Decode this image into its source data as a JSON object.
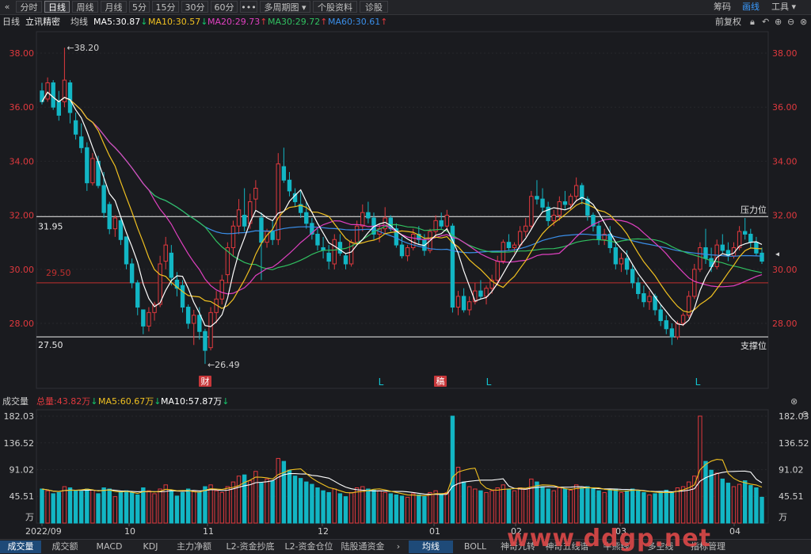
{
  "toolbar": {
    "back_icon": "«",
    "tabs": [
      "分时",
      "日线",
      "周线",
      "月线",
      "5分",
      "15分",
      "30分",
      "60分",
      "•••",
      "多周期图 ▾",
      "个股资料",
      "诊股"
    ],
    "active_tab": "日线",
    "right": [
      "筹码",
      "画线",
      "工具 ▾"
    ],
    "right_highlight": "画线"
  },
  "info": {
    "period": "日线",
    "name": "立讯精密",
    "avg": "均线",
    "ma5": "MA5:30.87",
    "ma10": "MA10:30.57",
    "ma20": "MA20:29.73",
    "ma30": "MA30:29.72",
    "ma60": "MA60:30.61",
    "fq": "前复权",
    "icons": [
      "lock-icon",
      "undo-icon",
      "zoom-in-icon",
      "zoom-out-icon",
      "close-icon"
    ]
  },
  "price_axis": {
    "ticks": [
      "38.00",
      "36.00",
      "34.00",
      "32.00",
      "30.00",
      "28.00"
    ]
  },
  "annotations": {
    "high": "38.20",
    "low": "26.49",
    "line_top_value": "31.95",
    "line_top_label": "压力位",
    "line_bottom_value": "27.50",
    "line_bottom_label": "支撑位",
    "red_line_value": "29.50",
    "marker_cai": "财",
    "marker_gao": "稿",
    "marker_l": "L"
  },
  "volume": {
    "title": "成交量",
    "total": "总量:43.82万",
    "ma5": "MA5:60.67万",
    "ma10": "MA10:57.87万",
    "ticks": [
      "182.03",
      "136.52",
      "91.02",
      "45.51"
    ],
    "unit": "万"
  },
  "x_axis": {
    "labels": [
      "2022/09",
      "10",
      "11",
      "12",
      "01",
      "02",
      "03",
      "04"
    ]
  },
  "bottom_tabs": [
    "成交量",
    "成交额",
    "MACD",
    "KDJ",
    "主力净额",
    "L2-资金抄底",
    "L2-资金仓位",
    "陆股通资金",
    "›",
    "均线",
    "BOLL",
    "神奇九转",
    "神奇五线谱",
    "牛熊线",
    "多空线",
    "指标管理"
  ],
  "bottom_active": [
    "成交量",
    "均线"
  ],
  "watermark": "www.ddgp.net",
  "colors": {
    "up": "#e0393e",
    "down": "#12b6c4",
    "ma5": "#ffffff",
    "ma10": "#f0c020",
    "ma20": "#e040c0",
    "ma30": "#30c060",
    "ma60": "#3a8ee8",
    "bg": "#1a1b1f",
    "grid": "#2e2f34"
  },
  "chart_data": {
    "type": "candlestick",
    "price_range": [
      26.4,
      38.5
    ],
    "volume_range": [
      0,
      182.03
    ],
    "candles": [
      [
        36.6,
        36.9,
        36.1,
        36.2,
        58
      ],
      [
        36.3,
        37.1,
        36.2,
        36.9,
        55
      ],
      [
        36.9,
        37.0,
        35.9,
        36.0,
        50
      ],
      [
        36.2,
        36.6,
        35.5,
        35.7,
        52
      ],
      [
        36.2,
        38.2,
        36.0,
        37.0,
        62
      ],
      [
        36.9,
        37.0,
        35.4,
        35.8,
        60
      ],
      [
        35.5,
        35.8,
        34.8,
        35.0,
        55
      ],
      [
        34.9,
        35.4,
        34.3,
        34.5,
        54
      ],
      [
        34.5,
        34.7,
        32.9,
        33.2,
        58
      ],
      [
        33.2,
        34.3,
        33.1,
        34.1,
        56
      ],
      [
        34.0,
        34.2,
        33.0,
        33.1,
        50
      ],
      [
        33.1,
        33.6,
        31.9,
        32.1,
        60
      ],
      [
        32.4,
        32.5,
        31.3,
        31.5,
        58
      ],
      [
        31.5,
        32.0,
        31.2,
        31.9,
        45
      ],
      [
        31.8,
        31.9,
        30.9,
        31.1,
        52
      ],
      [
        31.2,
        31.2,
        30.0,
        30.2,
        55
      ],
      [
        30.2,
        30.4,
        29.3,
        29.5,
        52
      ],
      [
        29.5,
        29.6,
        28.3,
        28.6,
        48
      ],
      [
        28.5,
        28.5,
        27.6,
        27.9,
        60
      ],
      [
        27.9,
        28.6,
        27.7,
        28.4,
        55
      ],
      [
        28.4,
        28.8,
        28.1,
        28.7,
        50
      ],
      [
        28.7,
        30.5,
        28.6,
        30.2,
        58
      ],
      [
        30.3,
        31.2,
        30.0,
        30.9,
        65
      ],
      [
        30.6,
        30.9,
        29.4,
        29.7,
        56
      ],
      [
        29.6,
        29.9,
        29.0,
        29.3,
        46
      ],
      [
        29.4,
        29.6,
        28.4,
        28.6,
        52
      ],
      [
        28.6,
        28.7,
        27.8,
        28.0,
        58
      ],
      [
        28.0,
        28.5,
        27.2,
        28.3,
        55
      ],
      [
        28.3,
        28.6,
        27.4,
        27.7,
        52
      ],
      [
        27.7,
        27.8,
        26.5,
        27.0,
        62
      ],
      [
        27.1,
        28.6,
        27.0,
        28.4,
        65
      ],
      [
        28.4,
        29.2,
        28.0,
        28.9,
        55
      ],
      [
        28.9,
        29.8,
        28.7,
        29.6,
        52
      ],
      [
        29.8,
        31.0,
        29.5,
        30.8,
        62
      ],
      [
        30.8,
        31.8,
        30.5,
        31.6,
        70
      ],
      [
        31.6,
        32.6,
        31.3,
        32.2,
        80
      ],
      [
        32.0,
        33.0,
        31.4,
        31.6,
        82
      ],
      [
        31.7,
        32.8,
        31.5,
        32.5,
        72
      ],
      [
        32.6,
        33.3,
        32.2,
        33.0,
        88
      ],
      [
        31.9,
        32.1,
        29.6,
        31.0,
        68
      ],
      [
        31.0,
        31.5,
        30.8,
        31.4,
        75
      ],
      [
        31.4,
        31.8,
        30.9,
        31.1,
        72
      ],
      [
        31.1,
        34.3,
        30.9,
        33.9,
        110
      ],
      [
        33.8,
        34.5,
        33.2,
        33.3,
        105
      ],
      [
        33.3,
        33.6,
        32.7,
        32.9,
        90
      ],
      [
        32.8,
        33.0,
        32.3,
        32.5,
        80
      ],
      [
        32.4,
        32.9,
        31.9,
        32.1,
        76
      ],
      [
        32.1,
        32.5,
        31.5,
        31.7,
        70
      ],
      [
        31.7,
        31.9,
        31.1,
        31.3,
        66
      ],
      [
        31.3,
        31.5,
        30.7,
        30.9,
        60
      ],
      [
        30.8,
        31.2,
        30.4,
        30.7,
        55
      ],
      [
        30.6,
        30.9,
        30.0,
        30.3,
        52
      ],
      [
        30.2,
        31.3,
        30.0,
        31.1,
        58
      ],
      [
        31.0,
        31.3,
        30.5,
        30.6,
        50
      ],
      [
        30.5,
        30.6,
        30.0,
        30.2,
        45
      ],
      [
        30.2,
        31.1,
        30.1,
        31.0,
        52
      ],
      [
        31.0,
        31.8,
        30.9,
        31.6,
        60
      ],
      [
        31.6,
        32.4,
        31.4,
        32.1,
        62
      ],
      [
        32.1,
        32.5,
        31.7,
        31.9,
        58
      ],
      [
        31.9,
        32.1,
        31.1,
        31.3,
        56
      ],
      [
        31.3,
        31.7,
        31.0,
        31.5,
        55
      ],
      [
        31.5,
        32.3,
        31.3,
        31.9,
        52
      ],
      [
        31.9,
        32.0,
        31.4,
        31.5,
        50
      ],
      [
        31.5,
        31.7,
        30.8,
        30.9,
        48
      ],
      [
        30.9,
        31.2,
        30.4,
        30.5,
        46
      ],
      [
        30.5,
        30.9,
        30.3,
        30.8,
        44
      ],
      [
        30.8,
        31.5,
        30.7,
        31.3,
        50
      ],
      [
        31.3,
        31.6,
        30.9,
        31.1,
        48
      ],
      [
        31.1,
        31.3,
        30.5,
        30.7,
        45
      ],
      [
        30.7,
        31.5,
        30.6,
        31.4,
        52
      ],
      [
        31.4,
        32.0,
        31.2,
        31.8,
        55
      ],
      [
        31.8,
        32.1,
        31.5,
        31.6,
        50
      ],
      [
        31.6,
        32.2,
        31.4,
        32.0,
        52
      ],
      [
        31.6,
        31.7,
        28.4,
        28.6,
        182
      ],
      [
        28.6,
        29.2,
        28.3,
        29.0,
        95
      ],
      [
        29.0,
        29.3,
        28.4,
        28.5,
        70
      ],
      [
        28.5,
        29.0,
        28.3,
        28.8,
        62
      ],
      [
        28.8,
        29.5,
        28.7,
        29.2,
        58
      ],
      [
        29.2,
        29.6,
        28.9,
        29.0,
        55
      ],
      [
        29.0,
        29.4,
        28.7,
        29.3,
        52
      ],
      [
        29.3,
        29.8,
        29.1,
        29.6,
        55
      ],
      [
        29.6,
        30.5,
        29.4,
        30.3,
        60
      ],
      [
        30.3,
        31.1,
        30.2,
        31.0,
        65
      ],
      [
        31.0,
        31.3,
        30.7,
        30.8,
        58
      ],
      [
        30.8,
        31.0,
        30.6,
        30.9,
        55
      ],
      [
        30.9,
        31.6,
        30.8,
        31.4,
        60
      ],
      [
        31.4,
        31.9,
        31.2,
        31.6,
        58
      ],
      [
        31.6,
        32.9,
        31.5,
        32.7,
        75
      ],
      [
        32.7,
        33.3,
        32.4,
        32.6,
        70
      ],
      [
        32.6,
        33.0,
        32.1,
        32.3,
        62
      ],
      [
        32.3,
        32.5,
        31.6,
        31.8,
        58
      ],
      [
        31.8,
        32.2,
        31.6,
        32.0,
        55
      ],
      [
        32.0,
        32.7,
        31.8,
        32.5,
        60
      ],
      [
        32.5,
        32.9,
        32.2,
        32.4,
        58
      ],
      [
        32.4,
        32.8,
        32.2,
        32.7,
        56
      ],
      [
        32.7,
        33.4,
        32.5,
        33.1,
        65
      ],
      [
        33.1,
        33.2,
        32.4,
        32.6,
        60
      ],
      [
        32.6,
        32.7,
        31.8,
        32.0,
        62
      ],
      [
        32.0,
        32.1,
        31.4,
        31.6,
        58
      ],
      [
        31.6,
        31.8,
        30.9,
        31.1,
        55
      ],
      [
        31.1,
        31.5,
        30.9,
        31.3,
        52
      ],
      [
        31.3,
        31.6,
        30.6,
        30.8,
        56
      ],
      [
        30.8,
        31.0,
        30.0,
        30.2,
        58
      ],
      [
        30.2,
        30.6,
        29.9,
        30.4,
        52
      ],
      [
        30.4,
        30.7,
        29.8,
        30.0,
        55
      ],
      [
        30.0,
        30.2,
        29.3,
        29.5,
        58
      ],
      [
        29.5,
        29.7,
        28.9,
        29.1,
        56
      ],
      [
        29.1,
        29.4,
        28.6,
        28.8,
        52
      ],
      [
        28.8,
        29.2,
        28.5,
        29.0,
        48
      ],
      [
        29.0,
        29.1,
        28.3,
        28.5,
        50
      ],
      [
        28.5,
        28.7,
        27.9,
        28.1,
        54
      ],
      [
        28.1,
        28.3,
        27.6,
        27.8,
        56
      ],
      [
        27.8,
        28.0,
        27.2,
        27.5,
        52
      ],
      [
        27.5,
        28.1,
        27.4,
        28.0,
        60
      ],
      [
        28.0,
        28.4,
        27.9,
        28.3,
        62
      ],
      [
        28.3,
        29.2,
        28.2,
        29.0,
        70
      ],
      [
        29.0,
        30.2,
        28.9,
        30.0,
        80
      ],
      [
        30.0,
        31.0,
        29.9,
        30.8,
        182
      ],
      [
        30.8,
        31.5,
        30.2,
        30.4,
        105
      ],
      [
        30.4,
        30.8,
        29.9,
        30.1,
        90
      ],
      [
        30.1,
        31.1,
        30.0,
        30.9,
        85
      ],
      [
        30.9,
        31.3,
        30.6,
        30.7,
        75
      ],
      [
        30.7,
        31.0,
        30.3,
        30.5,
        68
      ],
      [
        30.5,
        31.0,
        30.4,
        30.8,
        62
      ],
      [
        30.8,
        31.6,
        30.7,
        31.4,
        66
      ],
      [
        31.4,
        31.9,
        31.1,
        31.3,
        72
      ],
      [
        31.3,
        31.5,
        30.8,
        31.0,
        64
      ],
      [
        31.0,
        31.2,
        30.5,
        30.6,
        60
      ],
      [
        30.6,
        30.8,
        30.2,
        30.3,
        44
      ]
    ],
    "ma_series": [
      "MA5",
      "MA10",
      "MA20",
      "MA30",
      "MA60"
    ]
  }
}
